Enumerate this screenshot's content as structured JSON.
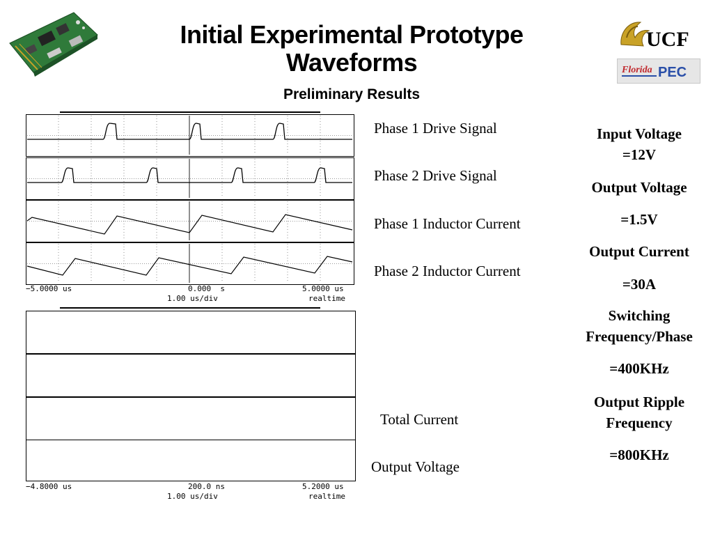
{
  "title_line1": "Initial Experimental Prototype",
  "title_line2": "Waveforms",
  "subtitle": "Preliminary Results",
  "logos": {
    "ucf": "UCF",
    "florida": "Florida",
    "pec": "PEC"
  },
  "scope_top": {
    "left_time": "−5.0000 us",
    "center_time": "0.000  s",
    "right_time": "5.0000 us",
    "timebase": "1.00 us/div",
    "mode": "realtime"
  },
  "scope_bottom": {
    "left_time": "−4.8000 us",
    "center_time": "200.0 ns",
    "right_time": "5.2000 us",
    "timebase": "1.00 us/div",
    "mode": "realtime"
  },
  "labels": {
    "phase1_drive": "Phase 1 Drive Signal",
    "phase2_drive": "Phase 2 Drive Signal",
    "phase1_current": "Phase 1 Inductor Current",
    "phase2_current": "Phase 2 Inductor Current",
    "total_current": "Total Current",
    "output_voltage": "Output Voltage"
  },
  "params": {
    "input_voltage_label": "Input Voltage",
    "input_voltage_value": "=12V",
    "output_voltage_label": "Output Voltage",
    "output_voltage_value": "=1.5V",
    "output_current_label": "Output Current",
    "output_current_value": "=30A",
    "switching_label_1": "Switching",
    "switching_label_2": "Frequency/Phase",
    "switching_value": "=400KHz",
    "ripple_label_1": "Output Ripple",
    "ripple_label_2": "Frequency",
    "ripple_value": "=800KHz"
  },
  "colors": {
    "trace": "#000000",
    "grid": "#555555",
    "ucf_gold": "#c9a227",
    "pec_blue": "#2a4fa8",
    "florida_red": "#c0282d",
    "board_green": "#2f7a3a"
  }
}
